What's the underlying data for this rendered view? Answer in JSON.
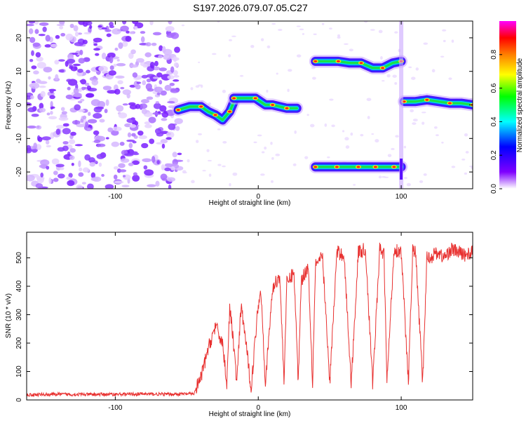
{
  "title": "S197.2026.079.07.05.C27",
  "chart_data": [
    {
      "type": "heatmap",
      "name": "spectrogram",
      "xlabel": "Height of straight line (km)",
      "ylabel": "Frequency (Hz)",
      "xlim": [
        -162,
        150
      ],
      "ylim": [
        -25,
        25
      ],
      "xticks": [
        -100,
        0,
        100
      ],
      "xtick_labels": [
        "-100",
        "0",
        "100"
      ],
      "yticks": [
        -20,
        -10,
        0,
        10,
        20
      ],
      "ytick_labels": [
        "-20",
        "-10",
        "0",
        "10",
        "20"
      ],
      "noise_region_x": [
        -162,
        -55
      ],
      "tracks": [
        {
          "x": [
            -56,
            -48,
            -40,
            -35,
            -30,
            -25,
            -20,
            -17
          ],
          "y": [
            -1.5,
            -0.5,
            -0.5,
            -2,
            -3,
            -4.5,
            -2,
            1
          ]
        },
        {
          "x": [
            -17,
            -10,
            -2,
            5,
            10,
            15,
            20,
            27
          ],
          "y": [
            2,
            2,
            2,
            0,
            0,
            -0.5,
            -1,
            -1
          ]
        },
        {
          "x": [
            40,
            47,
            55,
            62,
            70,
            76,
            82,
            88,
            95,
            100
          ],
          "y": [
            -18.5,
            -18.5,
            -18.5,
            -18.5,
            -18.5,
            -18.5,
            -18.5,
            -18.5,
            -18.5,
            -18.5
          ]
        },
        {
          "x": [
            40,
            48,
            56,
            64,
            72,
            80,
            87,
            94,
            100
          ],
          "y": [
            13,
            13,
            13,
            12.5,
            12.5,
            11,
            11,
            12.5,
            13
          ]
        },
        {
          "x": [
            102,
            110,
            118,
            126,
            134,
            142,
            150
          ],
          "y": [
            1,
            1,
            1.5,
            1,
            0.5,
            0.5,
            0
          ]
        }
      ],
      "colorbar": {
        "label": "Normalized spectral amplitude",
        "range": [
          0,
          1
        ],
        "ticks": [
          0.0,
          0.2,
          0.4,
          0.6,
          0.8
        ],
        "tick_labels": [
          "0.0",
          "0.2",
          "0.4",
          "0.6",
          "0.8"
        ],
        "colors": [
          "#ffffff",
          "#7f00ff",
          "#0000ff",
          "#00ffff",
          "#00ff00",
          "#ffff00",
          "#ff7f00",
          "#ff0000",
          "#ff00ff"
        ]
      }
    },
    {
      "type": "line",
      "name": "snr",
      "xlabel": "Height of straight line (km)",
      "ylabel": "SNR (10 * v/v)",
      "xlim": [
        -162,
        150
      ],
      "ylim": [
        0,
        590
      ],
      "xticks": [
        -100,
        0,
        100
      ],
      "xtick_labels": [
        "-100",
        "0",
        "100"
      ],
      "yticks": [
        0,
        100,
        200,
        300,
        400,
        500
      ],
      "ytick_labels": [
        "0",
        "100",
        "200",
        "300",
        "400",
        "500"
      ],
      "color": "#e8302f",
      "series": [
        {
          "name": "SNR",
          "x": [
            -162,
            -140,
            -120,
            -100,
            -80,
            -60,
            -45,
            -40,
            -35,
            -30,
            -25,
            -22,
            -20,
            -18,
            -15,
            -12,
            -10,
            -5,
            0,
            2,
            5,
            10,
            15,
            18,
            20,
            25,
            28,
            30,
            35,
            38,
            40,
            45,
            50,
            55,
            60,
            65,
            70,
            75,
            80,
            85,
            88,
            90,
            95,
            100,
            105,
            108,
            110,
            115,
            118,
            120,
            125,
            130,
            135,
            140,
            145,
            150
          ],
          "y": [
            18,
            20,
            19,
            20,
            21,
            20,
            22,
            80,
            180,
            260,
            200,
            60,
            320,
            240,
            60,
            330,
            260,
            40,
            340,
            380,
            60,
            390,
            440,
            70,
            410,
            450,
            60,
            420,
            470,
            60,
            480,
            500,
            60,
            520,
            510,
            60,
            520,
            530,
            60,
            530,
            510,
            60,
            530,
            520,
            60,
            525,
            520,
            60,
            510,
            500,
            520,
            500,
            530,
            520,
            510,
            520
          ]
        }
      ]
    }
  ]
}
